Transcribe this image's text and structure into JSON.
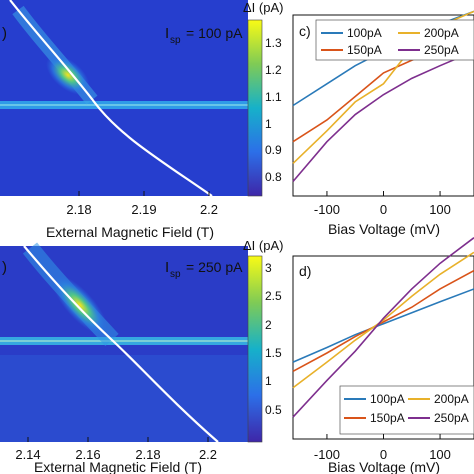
{
  "colors": {
    "heatmap_low": "#3d2bb8",
    "heatmap_mid": "#1e7bd6",
    "heatmap_high": "#f8e61f",
    "fit_line": "#ffffff",
    "series_100pA": "#2a7ab9",
    "series_150pA": "#d9541a",
    "series_200pA": "#e8b12a",
    "series_250pA": "#7e2f8e"
  },
  "panel_a": {
    "label": ")",
    "setpoint_label_main": "I",
    "setpoint_label_sub": "sp",
    "setpoint_value": "= 100 pA",
    "xlabel": "External Magnetic Field (T)",
    "xticks": [
      "2.18",
      "2.19",
      "2.2"
    ],
    "colorbar_title": "ΔI (pA)",
    "colorbar_ticks": [
      "0.8",
      "0.9",
      "1",
      "1.1",
      "1.2",
      "1.3"
    ]
  },
  "panel_b": {
    "label": ")",
    "setpoint_label_main": "I",
    "setpoint_label_sub": "sp",
    "setpoint_value": "= 250 pA",
    "xlabel": "External Magnetic Field (T)",
    "xticks": [
      "2.14",
      "2.16",
      "2.18",
      "2.2"
    ],
    "colorbar_title": "ΔI (pA)",
    "colorbar_ticks": [
      "0.5",
      "1",
      "1.5",
      "2",
      "2.5",
      "3"
    ]
  },
  "chart_data": [
    {
      "type": "heatmap",
      "panel": "a",
      "xlabel": "External Magnetic Field (T)",
      "xticks": [
        2.18,
        2.19,
        2.2
      ],
      "colorbar_label": "ΔI (pA)",
      "colorbar_range": [
        0.75,
        1.38
      ],
      "fit_line": true
    },
    {
      "type": "line",
      "panel": "c",
      "title": "c)",
      "xlabel": "Bias Voltage (mV)",
      "xticks": [
        -100,
        0,
        100
      ],
      "xlim": [
        -160,
        160
      ],
      "legend_position": "top",
      "legend": [
        "100pA",
        "200pA",
        "150pA",
        "250pA"
      ],
      "series": [
        {
          "name": "100pA",
          "x": [
            -160,
            -100,
            -50,
            0,
            50,
            100,
            160
          ],
          "y": [
            0.5,
            0.62,
            0.72,
            0.8,
            0.88,
            0.95,
            1.02
          ]
        },
        {
          "name": "150pA",
          "x": [
            -160,
            -100,
            -50,
            0,
            50,
            100,
            160
          ],
          "y": [
            0.3,
            0.42,
            0.55,
            0.68,
            0.75,
            0.82,
            0.9
          ]
        },
        {
          "name": "200pA",
          "x": [
            -160,
            -100,
            -50,
            0,
            50,
            100,
            160
          ],
          "y": [
            0.18,
            0.36,
            0.52,
            0.62,
            0.82,
            0.94,
            1.02
          ]
        },
        {
          "name": "250pA",
          "x": [
            -160,
            -100,
            -50,
            0,
            50,
            100,
            160
          ],
          "y": [
            0.08,
            0.3,
            0.45,
            0.56,
            0.65,
            0.72,
            0.8
          ]
        }
      ]
    },
    {
      "type": "heatmap",
      "panel": "b",
      "xlabel": "External Magnetic Field (T)",
      "xticks": [
        2.14,
        2.16,
        2.18,
        2.2
      ],
      "colorbar_label": "ΔI (pA)",
      "colorbar_range": [
        0.25,
        3.4
      ],
      "fit_line": true
    },
    {
      "type": "line",
      "panel": "d",
      "title": "d)",
      "xlabel": "Bias Voltage (mV)",
      "xticks": [
        -100,
        0,
        100
      ],
      "xlim": [
        -160,
        160
      ],
      "legend_position": "bottom-right",
      "legend": [
        "100pA",
        "200pA",
        "150pA",
        "250pA"
      ],
      "series": [
        {
          "name": "100pA",
          "x": [
            -160,
            -100,
            -50,
            0,
            50,
            100,
            160
          ],
          "y": [
            0.42,
            0.5,
            0.57,
            0.63,
            0.69,
            0.75,
            0.82
          ]
        },
        {
          "name": "150pA",
          "x": [
            -160,
            -100,
            -50,
            0,
            50,
            100,
            160
          ],
          "y": [
            0.37,
            0.47,
            0.56,
            0.64,
            0.72,
            0.82,
            0.92
          ]
        },
        {
          "name": "200pA",
          "x": [
            -160,
            -100,
            -50,
            0,
            50,
            100,
            160
          ],
          "y": [
            0.28,
            0.42,
            0.54,
            0.65,
            0.78,
            0.9,
            1.02
          ]
        },
        {
          "name": "250pA",
          "x": [
            -160,
            -100,
            -50,
            0,
            50,
            100,
            160
          ],
          "y": [
            0.12,
            0.32,
            0.48,
            0.66,
            0.82,
            0.96,
            1.1
          ]
        }
      ]
    }
  ],
  "panel_c": {
    "label": "c)",
    "xlabel": "Bias Voltage (mV)",
    "xticks": [
      "-100",
      "0",
      "100"
    ],
    "legend": [
      "100pA",
      "200pA",
      "150pA",
      "250pA"
    ]
  },
  "panel_d": {
    "label": "d)",
    "xlabel": "Bias Voltage (mV)",
    "xticks": [
      "-100",
      "0",
      "100"
    ],
    "legend": [
      "100pA",
      "200pA",
      "150pA",
      "250pA"
    ]
  }
}
